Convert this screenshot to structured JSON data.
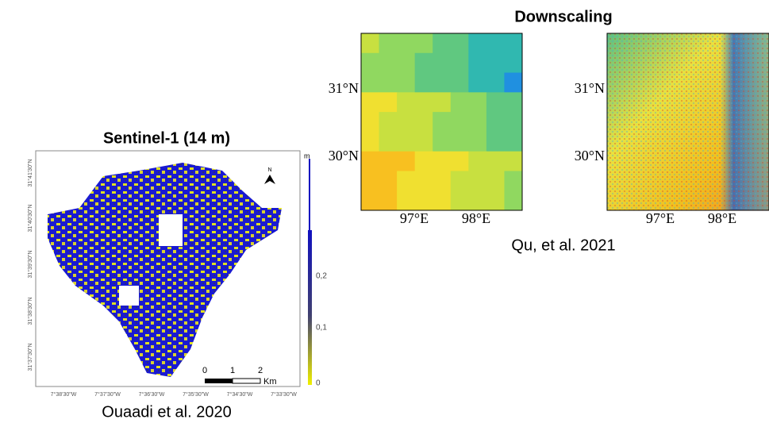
{
  "title": "Downscaling",
  "left_panel": {
    "title": "Sentinel-1 (14 m)",
    "caption": "Ouaadi et al. 2020",
    "lat_labels": [
      "31°41'30\"N",
      "31°40'30\"N",
      "31°39'30\"N",
      "31°38'30\"N",
      "31°37'30\"N"
    ],
    "lon_labels": [
      "7°38'30\"W",
      "7°37'30\"W",
      "7°36'30\"W",
      "7°35'30\"W",
      "7°34'30\"W",
      "7°33'30\"W"
    ],
    "colorbar_title": "m",
    "colorbar_labels": [
      "0,2",
      "0,1",
      "0"
    ],
    "scale_labels": [
      "0",
      "1",
      "2",
      "Km"
    ],
    "north": "N"
  },
  "right_panel": {
    "caption": "Qu, et al. 2021",
    "maps": [
      {
        "lat_labels": [
          "31°N",
          "30°N"
        ],
        "lon_labels": [
          "97°E",
          "98°E"
        ]
      },
      {
        "lat_labels": [
          "31°N",
          "30°N"
        ],
        "lon_labels": [
          "97°E",
          "98°E"
        ]
      }
    ]
  }
}
